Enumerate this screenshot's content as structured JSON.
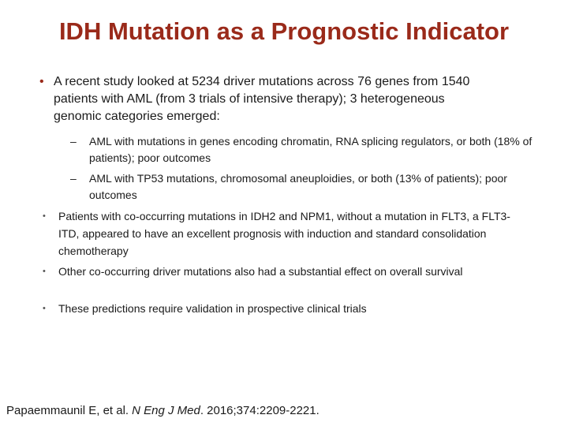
{
  "title": "IDH Mutation as a Prognostic Indicator",
  "bullets": [
    {
      "text": "A recent study looked at 5234 driver mutations across 76 genes from 1540 patients with AML (from 3 trials of intensive therapy); 3 heterogeneous genomic categories emerged:",
      "sub": [
        "AML with mutations in genes encoding chromatin, RNA splicing regulators, or both (18% of patients); poor outcomes",
        "AML with TP53 mutations, chromosomal aneuploidies, or both (13% of patients); poor outcomes"
      ]
    },
    {
      "text": "Patients with co-occurring mutations in IDH2 and NPM1, without a mutation in FLT3, a FLT3-ITD, appeared to have an excellent prognosis with induction and standard consolidation chemotherapy"
    },
    {
      "text": "Other co-occurring driver mutations also had a substantial effect on overall survival"
    },
    {
      "text": "These predictions require validation in prospective clinical trials"
    }
  ],
  "citation": {
    "authors": "Papaemmaunil E, et al.",
    "journal": "N Eng J Med",
    "details": ". 2016;374:2209-2221."
  }
}
